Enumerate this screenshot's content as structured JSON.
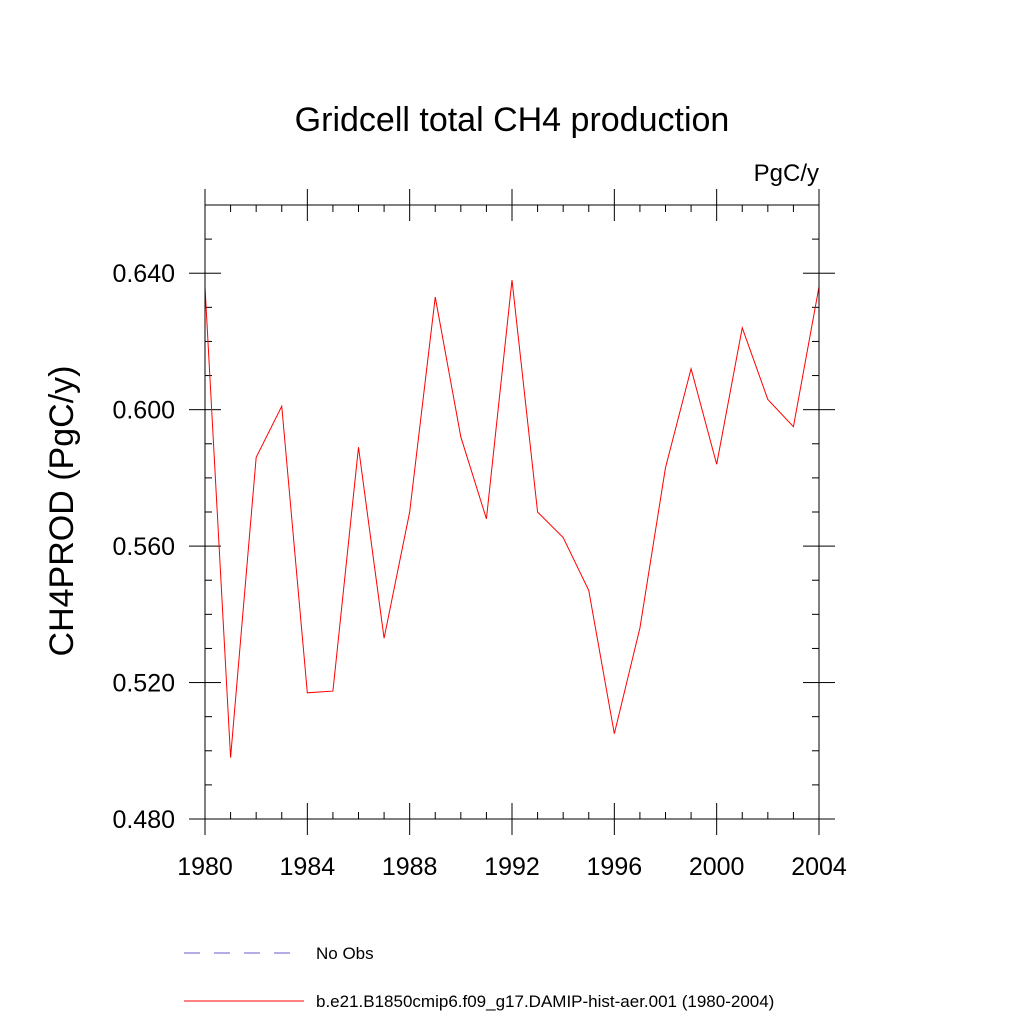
{
  "chart_data": {
    "type": "line",
    "title": "Gridcell total CH4 production",
    "units_label": "PgC/y",
    "ylabel": "CH4PROD  (PgC/y)",
    "xlabel": "",
    "xlim": [
      1980,
      2004
    ],
    "ylim": [
      0.48,
      0.66
    ],
    "x_ticks": [
      1980,
      1984,
      1988,
      1992,
      1996,
      2000,
      2004
    ],
    "x_tick_labels": [
      "1980",
      "1984",
      "1988",
      "1992",
      "1996",
      "2000",
      "2004"
    ],
    "y_ticks": [
      0.48,
      0.52,
      0.56,
      0.6,
      0.64
    ],
    "y_tick_labels": [
      "0.480",
      "0.520",
      "0.560",
      "0.600",
      "0.640"
    ],
    "grid": false,
    "legend_position": "bottom",
    "series": [
      {
        "name": "b.e21.B1850cmip6.f09_g17.DAMIP-hist-aer.001 (1980-2004)",
        "color": "#ff0000",
        "dash": "solid",
        "x": [
          1980,
          1981,
          1982,
          1983,
          1984,
          1985,
          1986,
          1987,
          1988,
          1989,
          1990,
          1991,
          1992,
          1993,
          1994,
          1995,
          1996,
          1997,
          1998,
          1999,
          2000,
          2001,
          2002,
          2003,
          2004
        ],
        "y": [
          0.636,
          0.498,
          0.586,
          0.601,
          0.517,
          0.5175,
          0.589,
          0.533,
          0.57,
          0.633,
          0.592,
          0.568,
          0.638,
          0.57,
          0.5625,
          0.547,
          0.505,
          0.536,
          0.583,
          0.612,
          0.584,
          0.624,
          0.603,
          0.595,
          0.636
        ]
      }
    ],
    "legend": [
      {
        "label": "No Obs",
        "color": "#6a5acd",
        "dash": "dashed"
      },
      {
        "label": "b.e21.B1850cmip6.f09_g17.DAMIP-hist-aer.001 (1980-2004)",
        "color": "#ff0000",
        "dash": "solid"
      }
    ]
  }
}
